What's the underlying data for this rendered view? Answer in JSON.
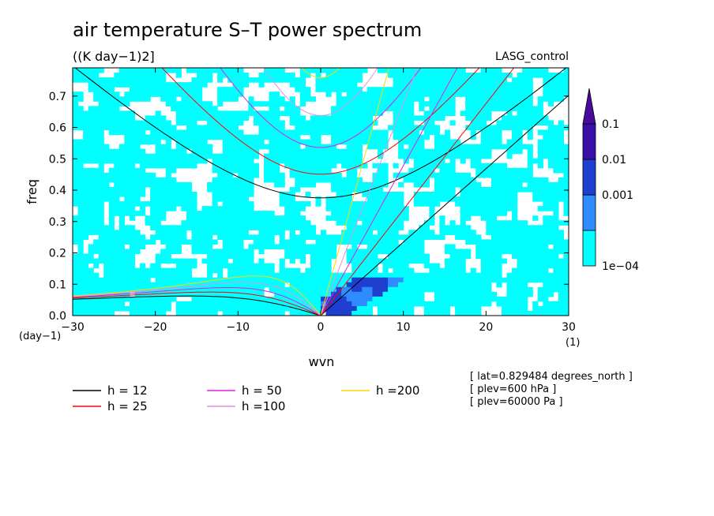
{
  "chart_data": {
    "type": "heatmap",
    "title": "air temperature S–T power spectrum",
    "units": "((K day−1)2]",
    "run_label": "LASG_control",
    "xlabel": "wvn",
    "ylabel": "freq",
    "x_unit_label": "(1)",
    "y_unit_label": "(day−1)",
    "xlim": [
      -30,
      30
    ],
    "ylim": [
      0,
      0.79
    ],
    "x_ticks": [
      -30,
      -20,
      -10,
      0,
      10,
      20,
      30
    ],
    "x_tick_labels": [
      "−30",
      "−20",
      "−10",
      "0",
      "10",
      "20",
      "30"
    ],
    "y_ticks": [
      0,
      0.1,
      0.2,
      0.3,
      0.4,
      0.5,
      0.6,
      0.7
    ],
    "y_tick_labels": [
      "0.0",
      "0.1",
      "0.2",
      "0.3",
      "0.4",
      "0.5",
      "0.6",
      "0.7"
    ],
    "colorbar": {
      "levels": [
        "1e−04",
        "0.001",
        "0.01",
        "0.1"
      ],
      "colors": [
        "#00ffff",
        "#2f8cff",
        "#1f3fd0",
        "#3a0fa8",
        "#4b0a9c"
      ]
    },
    "dispersion_legend": [
      {
        "label": "h = 12",
        "color": "#000000"
      },
      {
        "label": "h = 25",
        "color": "#ff0000"
      },
      {
        "label": "h = 50",
        "color": "#e020e0"
      },
      {
        "label": "h =100",
        "color": "#e090e0"
      },
      {
        "label": "h =200",
        "color": "#ffd700"
      }
    ],
    "dispersion_h": [
      12,
      25,
      50,
      100,
      200
    ],
    "annotations": [
      "[ lat=0.829484 degrees_north ]",
      "[ plev=600 hPa ]",
      "[ plev=60000 Pa ]"
    ]
  }
}
